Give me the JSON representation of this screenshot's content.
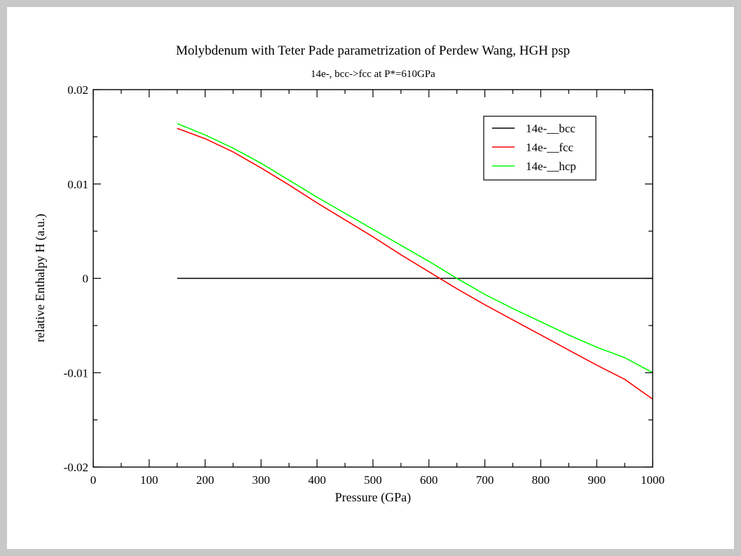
{
  "chart_data": {
    "type": "line",
    "title": "Molybdenum with Teter Pade parametrization of Perdew Wang, HGH psp",
    "subtitle": "14e-, bcc->fcc at P*=610GPa",
    "xlabel": "Pressure (GPa)",
    "ylabel": "relative Enthalpy H (a.u.)",
    "xlim": [
      0,
      1000
    ],
    "ylim": [
      -0.02,
      0.02
    ],
    "x_ticks": [
      0,
      100,
      200,
      300,
      400,
      500,
      600,
      700,
      800,
      900,
      1000
    ],
    "x_tick_labels": [
      "0",
      "100",
      "200",
      "300",
      "400",
      "500",
      "600",
      "700",
      "800",
      "900",
      "1000"
    ],
    "y_ticks": [
      -0.02,
      -0.01,
      0,
      0.01,
      0.02
    ],
    "y_tick_labels": [
      "-0.02",
      "-0.01",
      "0",
      "0.01",
      "0.02"
    ],
    "grid": false,
    "legend_position": "top-right",
    "series": [
      {
        "name": "14e-__bcc",
        "color": "#000000",
        "x": [
          150,
          1000
        ],
        "y": [
          0,
          0
        ]
      },
      {
        "name": "14e-__fcc",
        "color": "#ff0000",
        "x": [
          150,
          200,
          250,
          300,
          350,
          400,
          450,
          500,
          550,
          600,
          650,
          700,
          750,
          800,
          850,
          900,
          950,
          1000
        ],
        "y": [
          0.0159,
          0.0148,
          0.0134,
          0.0117,
          0.0099,
          0.008,
          0.0062,
          0.0044,
          0.0025,
          0.0007,
          -0.0011,
          -0.0028,
          -0.0044,
          -0.006,
          -0.0076,
          -0.0092,
          -0.0107,
          -0.0128
        ]
      },
      {
        "name": "14e-__hcp",
        "color": "#00ff00",
        "x": [
          150,
          200,
          250,
          300,
          350,
          400,
          450,
          500,
          550,
          600,
          650,
          700,
          750,
          800,
          850,
          900,
          950,
          1000
        ],
        "y": [
          0.0164,
          0.0152,
          0.0138,
          0.0122,
          0.0104,
          0.0086,
          0.0069,
          0.0052,
          0.0035,
          0.0018,
          0.0,
          -0.0017,
          -0.0032,
          -0.0046,
          -0.006,
          -0.0073,
          -0.0084,
          -0.01
        ]
      }
    ]
  }
}
